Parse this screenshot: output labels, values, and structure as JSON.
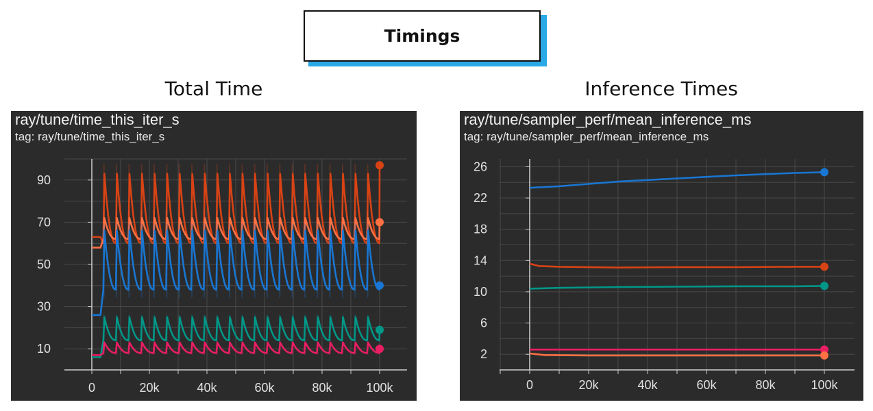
{
  "header": {
    "title": "Timings"
  },
  "charts_titles": {
    "left": "Total Time",
    "right": "Inference Times"
  },
  "chart_data": [
    {
      "type": "line",
      "title": "ray/tune/time_this_iter_s",
      "subtitle": "tag: ray/tune/time_this_iter_s",
      "xlim": [
        0,
        100000
      ],
      "ylim": [
        0,
        100
      ],
      "x_ticks": [
        "0",
        "20k",
        "40k",
        "60k",
        "80k",
        "100k"
      ],
      "y_ticks": [
        "10",
        "30",
        "50",
        "70",
        "90"
      ],
      "grid": true,
      "series": [
        {
          "color": "#d84315",
          "pattern": "sawtooth",
          "base": 60,
          "peak": 93,
          "start": 63,
          "end_value": 97
        },
        {
          "color": "#ff7043",
          "pattern": "sawtooth",
          "base": 62,
          "peak": 72,
          "start": 58,
          "end_value": 70
        },
        {
          "color": "#1976d2",
          "pattern": "sawtooth",
          "base": 38,
          "peak": 66,
          "start": 26,
          "end_value": 40
        },
        {
          "color": "#009688",
          "pattern": "sawtooth",
          "base": 14,
          "peak": 25,
          "start": 6,
          "end_value": 19
        },
        {
          "color": "#e91e63",
          "pattern": "sawtooth",
          "base": 8,
          "peak": 13,
          "start": 7,
          "end_value": 10
        }
      ]
    },
    {
      "type": "line",
      "title": "ray/tune/sampler_perf/mean_inference_ms",
      "subtitle": "tag: ray/tune/sampler_perf/mean_inference_ms",
      "xlim": [
        0,
        100000
      ],
      "ylim": [
        0,
        27
      ],
      "x_ticks": [
        "0",
        "20k",
        "40k",
        "60k",
        "80k",
        "100k"
      ],
      "y_ticks": [
        "2",
        "6",
        "10",
        "14",
        "18",
        "22",
        "26"
      ],
      "grid": true,
      "series": [
        {
          "color": "#1976d2",
          "x": [
            0,
            10000,
            20000,
            30000,
            40000,
            50000,
            60000,
            70000,
            80000,
            90000,
            100000
          ],
          "y": [
            23.3,
            23.5,
            23.8,
            24.1,
            24.3,
            24.5,
            24.7,
            24.9,
            25.05,
            25.2,
            25.3
          ]
        },
        {
          "color": "#d84315",
          "x": [
            0,
            3000,
            10000,
            30000,
            50000,
            70000,
            90000,
            100000
          ],
          "y": [
            13.6,
            13.3,
            13.2,
            13.1,
            13.15,
            13.15,
            13.2,
            13.2
          ]
        },
        {
          "color": "#009688",
          "x": [
            0,
            10000,
            30000,
            50000,
            70000,
            90000,
            100000
          ],
          "y": [
            10.4,
            10.5,
            10.6,
            10.65,
            10.7,
            10.7,
            10.75
          ]
        },
        {
          "color": "#e91e63",
          "x": [
            0,
            20000,
            50000,
            80000,
            100000
          ],
          "y": [
            2.6,
            2.6,
            2.6,
            2.6,
            2.6
          ]
        },
        {
          "color": "#ff7043",
          "x": [
            0,
            5000,
            20000,
            50000,
            80000,
            100000
          ],
          "y": [
            2.1,
            1.9,
            1.85,
            1.85,
            1.85,
            1.85
          ]
        }
      ]
    }
  ]
}
